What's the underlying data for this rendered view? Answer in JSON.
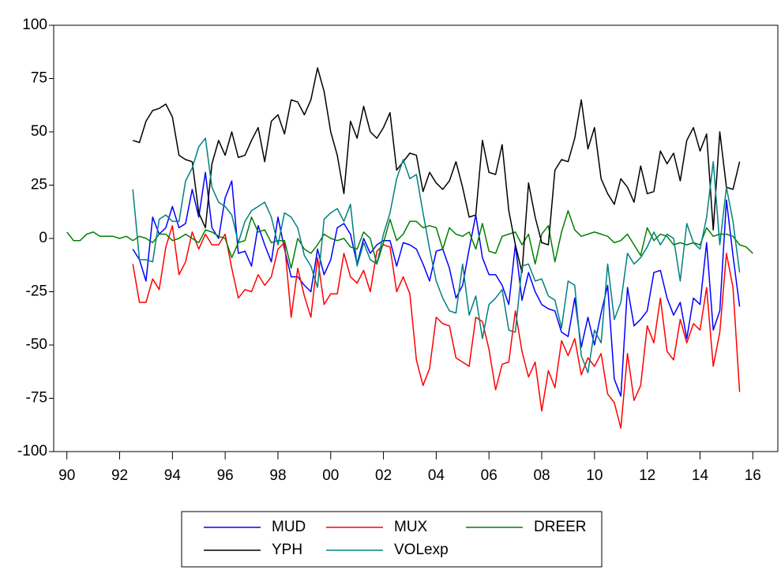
{
  "chart_data": {
    "type": "line",
    "x": [
      1990,
      1990.25,
      1990.5,
      1990.75,
      1991,
      1991.25,
      1991.5,
      1991.75,
      1992,
      1992.25,
      1992.5,
      1992.75,
      1993,
      1993.25,
      1993.5,
      1993.75,
      1994,
      1994.25,
      1994.5,
      1994.75,
      1995,
      1995.25,
      1995.5,
      1995.75,
      1996,
      1996.25,
      1996.5,
      1996.75,
      1997,
      1997.25,
      1997.5,
      1997.75,
      1998,
      1998.25,
      1998.5,
      1998.75,
      1999,
      1999.25,
      1999.5,
      1999.75,
      2000,
      2000.25,
      2000.5,
      2000.75,
      2001,
      2001.25,
      2001.5,
      2001.75,
      2002,
      2002.25,
      2002.5,
      2002.75,
      2003,
      2003.25,
      2003.5,
      2003.75,
      2004,
      2004.25,
      2004.5,
      2004.75,
      2005,
      2005.25,
      2005.5,
      2005.75,
      2006,
      2006.25,
      2006.5,
      2006.75,
      2007,
      2007.25,
      2007.5,
      2007.75,
      2008,
      2008.25,
      2008.5,
      2008.75,
      2009,
      2009.25,
      2009.5,
      2009.75,
      2010,
      2010.25,
      2010.5,
      2010.75,
      2011,
      2011.25,
      2011.5,
      2011.75,
      2012,
      2012.25,
      2012.5,
      2012.75,
      2013,
      2013.25,
      2013.5,
      2013.75,
      2014,
      2014.25,
      2014.5,
      2014.75,
      2015,
      2015.25,
      2015.5,
      2015.75,
      2016
    ],
    "series": [
      {
        "name": "MUD",
        "color": "#0000ff",
        "values": [
          null,
          null,
          null,
          null,
          null,
          null,
          null,
          null,
          null,
          null,
          -5,
          -10,
          -20,
          10,
          2,
          5,
          15,
          5,
          7,
          23,
          10,
          31,
          5,
          0,
          19,
          27,
          -7,
          -6,
          -13,
          6,
          -3,
          -11,
          10,
          -5,
          -18,
          -18,
          -22,
          -25,
          -5,
          -17,
          -10,
          5,
          7,
          2,
          -12,
          0,
          -7,
          -3,
          -1,
          -1,
          -13,
          -2,
          -3,
          -5,
          -12,
          -20,
          -6,
          -5,
          -14,
          -28,
          -22,
          -5,
          11,
          -9,
          -17,
          -17,
          -22,
          -31,
          -3,
          -29,
          -16,
          -25,
          -31,
          -33,
          -34,
          -44,
          -46,
          -28,
          -51,
          -37,
          -50,
          -35,
          -22,
          -66,
          -74,
          -23,
          -41,
          -38,
          -34,
          -16,
          -15,
          -28,
          -36,
          -30,
          -47,
          -28,
          -31,
          -2,
          -43,
          -34,
          18,
          -8,
          -32,
          null,
          null
        ]
      },
      {
        "name": "MUX",
        "color": "#ff0000",
        "values": [
          null,
          null,
          null,
          null,
          null,
          null,
          null,
          null,
          null,
          null,
          -12,
          -30,
          -30,
          -19,
          -24,
          -4,
          6,
          -17,
          -11,
          3,
          -5,
          2,
          -3,
          -3,
          2,
          -14,
          -28,
          -24,
          -25,
          -17,
          -22,
          -18,
          -5,
          -2,
          -37,
          -14,
          -27,
          -37,
          -9,
          -31,
          -26,
          -26,
          -7,
          -18,
          -21,
          -15,
          -25,
          -6,
          -3,
          -4,
          -25,
          -18,
          -26,
          -57,
          -69,
          -61,
          -37,
          -40,
          -41,
          -56,
          -58,
          -60,
          -37,
          -39,
          -52,
          -71,
          -59,
          -58,
          -34,
          -53,
          -65,
          -58,
          -81,
          -62,
          -70,
          -48,
          -55,
          -47,
          -64,
          -56,
          -60,
          -54,
          -73,
          -77,
          -89,
          -54,
          -76,
          -69,
          -41,
          -49,
          -28,
          -53,
          -57,
          -38,
          -49,
          -40,
          -43,
          -23,
          -60,
          -44,
          -7,
          -23,
          -72,
          null,
          null
        ]
      },
      {
        "name": "DREER",
        "color": "#008000",
        "values": [
          3,
          -1,
          -1,
          2,
          3,
          1,
          1,
          1,
          0,
          1,
          -1,
          1,
          0,
          -2,
          2,
          2,
          -1,
          0,
          2,
          0,
          -2,
          4,
          3,
          1,
          0,
          -9,
          -2,
          -1,
          10,
          3,
          4,
          -2,
          -1,
          -1,
          -14,
          0,
          -5,
          -7,
          -3,
          2,
          0,
          -1,
          0,
          -4,
          -5,
          3,
          0,
          -12,
          -2,
          9,
          -1,
          2,
          8,
          8,
          5,
          6,
          5,
          -5,
          5,
          2,
          1,
          3,
          -5,
          7,
          -6,
          -7,
          1,
          2,
          3,
          -3,
          2,
          -12,
          2,
          6,
          -11,
          3,
          13,
          4,
          1,
          2,
          3,
          2,
          1,
          -2,
          -1,
          2,
          -3,
          -8,
          5,
          -1,
          2,
          1,
          -3,
          -2,
          -3,
          -2,
          -3,
          5,
          1,
          2,
          2,
          1,
          -3,
          -4,
          -7
        ]
      },
      {
        "name": "YPH",
        "color": "#000000",
        "values": [
          null,
          null,
          null,
          null,
          null,
          null,
          null,
          null,
          null,
          null,
          46,
          45,
          55,
          60,
          61,
          63,
          57,
          39,
          37,
          36,
          12,
          5,
          35,
          46,
          39,
          50,
          38,
          39,
          46,
          52,
          36,
          55,
          58,
          49,
          65,
          64,
          58,
          65,
          80,
          69,
          50,
          39,
          21,
          55,
          47,
          62,
          50,
          47,
          52,
          59,
          32,
          36,
          40,
          39,
          22,
          31,
          26,
          23,
          27,
          36,
          24,
          10,
          11,
          46,
          31,
          30,
          44,
          13,
          -3,
          -16,
          26,
          10,
          -2,
          -3,
          32,
          37,
          36,
          47,
          65,
          42,
          52,
          28,
          21,
          16,
          28,
          24,
          17,
          34,
          21,
          22,
          41,
          35,
          40,
          27,
          46,
          52,
          41,
          49,
          4,
          50,
          24,
          23,
          36,
          null,
          null
        ]
      },
      {
        "name": "VOLexp",
        "color": "#008080",
        "values": [
          null,
          null,
          null,
          null,
          null,
          null,
          null,
          null,
          null,
          null,
          23,
          -10,
          -10,
          -11,
          9,
          11,
          8,
          8,
          27,
          33,
          43,
          47,
          24,
          17,
          15,
          11,
          -2,
          8,
          13,
          15,
          17,
          10,
          -3,
          12,
          10,
          5,
          -8,
          -13,
          -23,
          9,
          12,
          14,
          8,
          16,
          -13,
          -2,
          -10,
          -12,
          2,
          12,
          28,
          37,
          28,
          30,
          12,
          -5,
          -20,
          -28,
          -34,
          -35,
          -12,
          -36,
          -27,
          -47,
          -31,
          -28,
          -24,
          -43,
          -44,
          -13,
          -12,
          -20,
          -19,
          -27,
          -29,
          -42,
          -20,
          -22,
          -55,
          -63,
          -43,
          -49,
          -12,
          -38,
          -30,
          -7,
          -12,
          -9,
          -4,
          3,
          -3,
          2,
          0,
          -20,
          7,
          -2,
          -5,
          10,
          36,
          -3,
          24,
          8,
          -16,
          null,
          null
        ]
      }
    ],
    "xlim": [
      1989.5,
      2016.95
    ],
    "xticks": [
      {
        "value": 1990,
        "label": "90"
      },
      {
        "value": 1992,
        "label": "92"
      },
      {
        "value": 1994,
        "label": "94"
      },
      {
        "value": 1996,
        "label": "96"
      },
      {
        "value": 1998,
        "label": "98"
      },
      {
        "value": 2000,
        "label": "00"
      },
      {
        "value": 2002,
        "label": "02"
      },
      {
        "value": 2004,
        "label": "04"
      },
      {
        "value": 2006,
        "label": "06"
      },
      {
        "value": 2008,
        "label": "08"
      },
      {
        "value": 2010,
        "label": "10"
      },
      {
        "value": 2012,
        "label": "12"
      },
      {
        "value": 2014,
        "label": "14"
      },
      {
        "value": 2016,
        "label": "16"
      }
    ],
    "ylim": [
      -100,
      100
    ],
    "yticks": [
      100,
      75,
      50,
      25,
      0,
      -25,
      -50,
      -75,
      -100
    ],
    "legend": "bottom"
  }
}
